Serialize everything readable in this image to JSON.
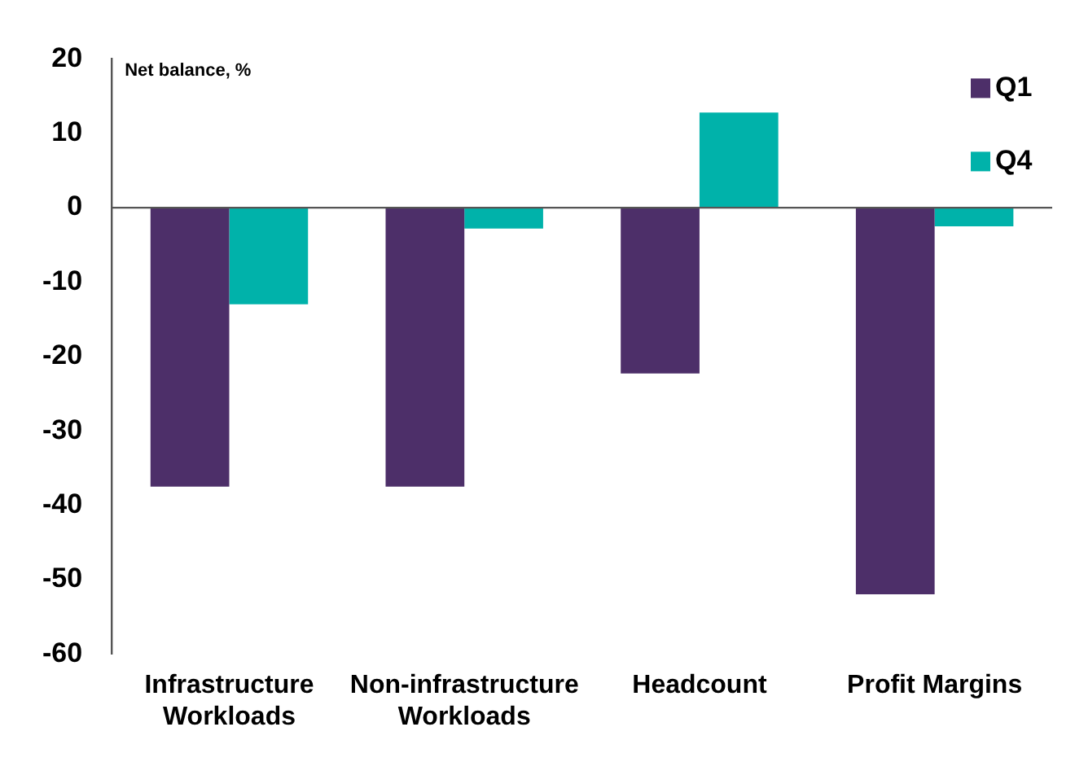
{
  "chart_data": {
    "type": "bar",
    "ylabel": "Net balance, %",
    "categories": [
      "Infrastructure Workloads",
      "Non-infrastructure Workloads",
      "Headcount",
      "Profit Margins"
    ],
    "series": [
      {
        "name": "Q1",
        "color": "#4d2f69",
        "values": [
          -37.5,
          -37.5,
          -22.3,
          -52
        ]
      },
      {
        "name": "Q4",
        "color": "#00b2aa",
        "values": [
          -13,
          -2.8,
          12.8,
          -2.5
        ]
      }
    ],
    "ylim": [
      -60,
      20
    ],
    "yticks": [
      -60,
      -50,
      -40,
      -30,
      -20,
      -10,
      0,
      10,
      20
    ],
    "grid": false,
    "ref_lines": [
      {
        "axis": "y",
        "value": 0,
        "color": "#555555"
      }
    ],
    "legend": "top right"
  }
}
